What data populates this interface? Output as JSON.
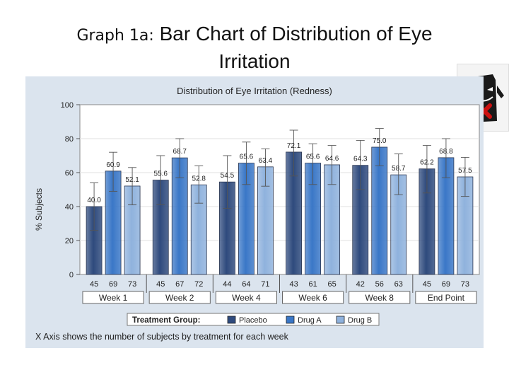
{
  "slide": {
    "title_prefix": "Graph 1a:",
    "title_line1": "Bar Chart of Distribution of Eye",
    "title_line2": "Irritation"
  },
  "logo": {
    "icon": "dark-mascot-with-red-x-icon",
    "accent_color": "#cc1111"
  },
  "chart_data": {
    "type": "bar",
    "title": "Distribution of Eye Irritation (Redness)",
    "ylabel": "% Subjects",
    "xlabel": "",
    "ylim": [
      0,
      100
    ],
    "yticks": [
      0,
      20,
      40,
      60,
      80,
      100
    ],
    "grid": true,
    "categories": [
      "Week 1",
      "Week 2",
      "Week 4",
      "Week 6",
      "Week 8",
      "End Point"
    ],
    "series": [
      {
        "name": "Placebo",
        "color": "#2e4a7d",
        "values": [
          40.0,
          55.6,
          54.5,
          72.1,
          64.3,
          62.2
        ],
        "value_labels": [
          "40.0",
          "55.6",
          "54.5",
          "72.1",
          "64.3",
          "62.2"
        ],
        "error_low": [
          26,
          41,
          39,
          58,
          50,
          48
        ],
        "error_high": [
          54,
          70,
          70,
          85,
          79,
          76
        ],
        "n": [
          "45",
          "45",
          "44",
          "43",
          "42",
          "45"
        ]
      },
      {
        "name": "Drug A",
        "color": "#3a77c7",
        "values": [
          60.9,
          68.7,
          65.6,
          65.6,
          75.0,
          68.8
        ],
        "value_labels": [
          "60.9",
          "68.7",
          "65.6",
          "65.6",
          "75.0",
          "68.8"
        ],
        "error_low": [
          49,
          57,
          53,
          53,
          64,
          57
        ],
        "error_high": [
          72,
          80,
          78,
          77,
          86,
          80
        ],
        "n": [
          "69",
          "67",
          "64",
          "61",
          "56",
          "69"
        ]
      },
      {
        "name": "Drug B",
        "color": "#8fb2dd",
        "values": [
          52.1,
          52.8,
          63.4,
          64.6,
          58.7,
          57.5
        ],
        "value_labels": [
          "52.1",
          "52.8",
          "63.4",
          "64.6",
          "58.7",
          "57.5"
        ],
        "error_low": [
          41,
          42,
          52,
          53,
          47,
          46
        ],
        "error_high": [
          63,
          64,
          74,
          76,
          71,
          69
        ],
        "n": [
          "73",
          "72",
          "71",
          "65",
          "63",
          "73"
        ]
      }
    ],
    "legend": {
      "title": "Treatment Group:",
      "position": "bottom"
    },
    "footnote": "X Axis shows the number of subjects by treatment for each week"
  }
}
